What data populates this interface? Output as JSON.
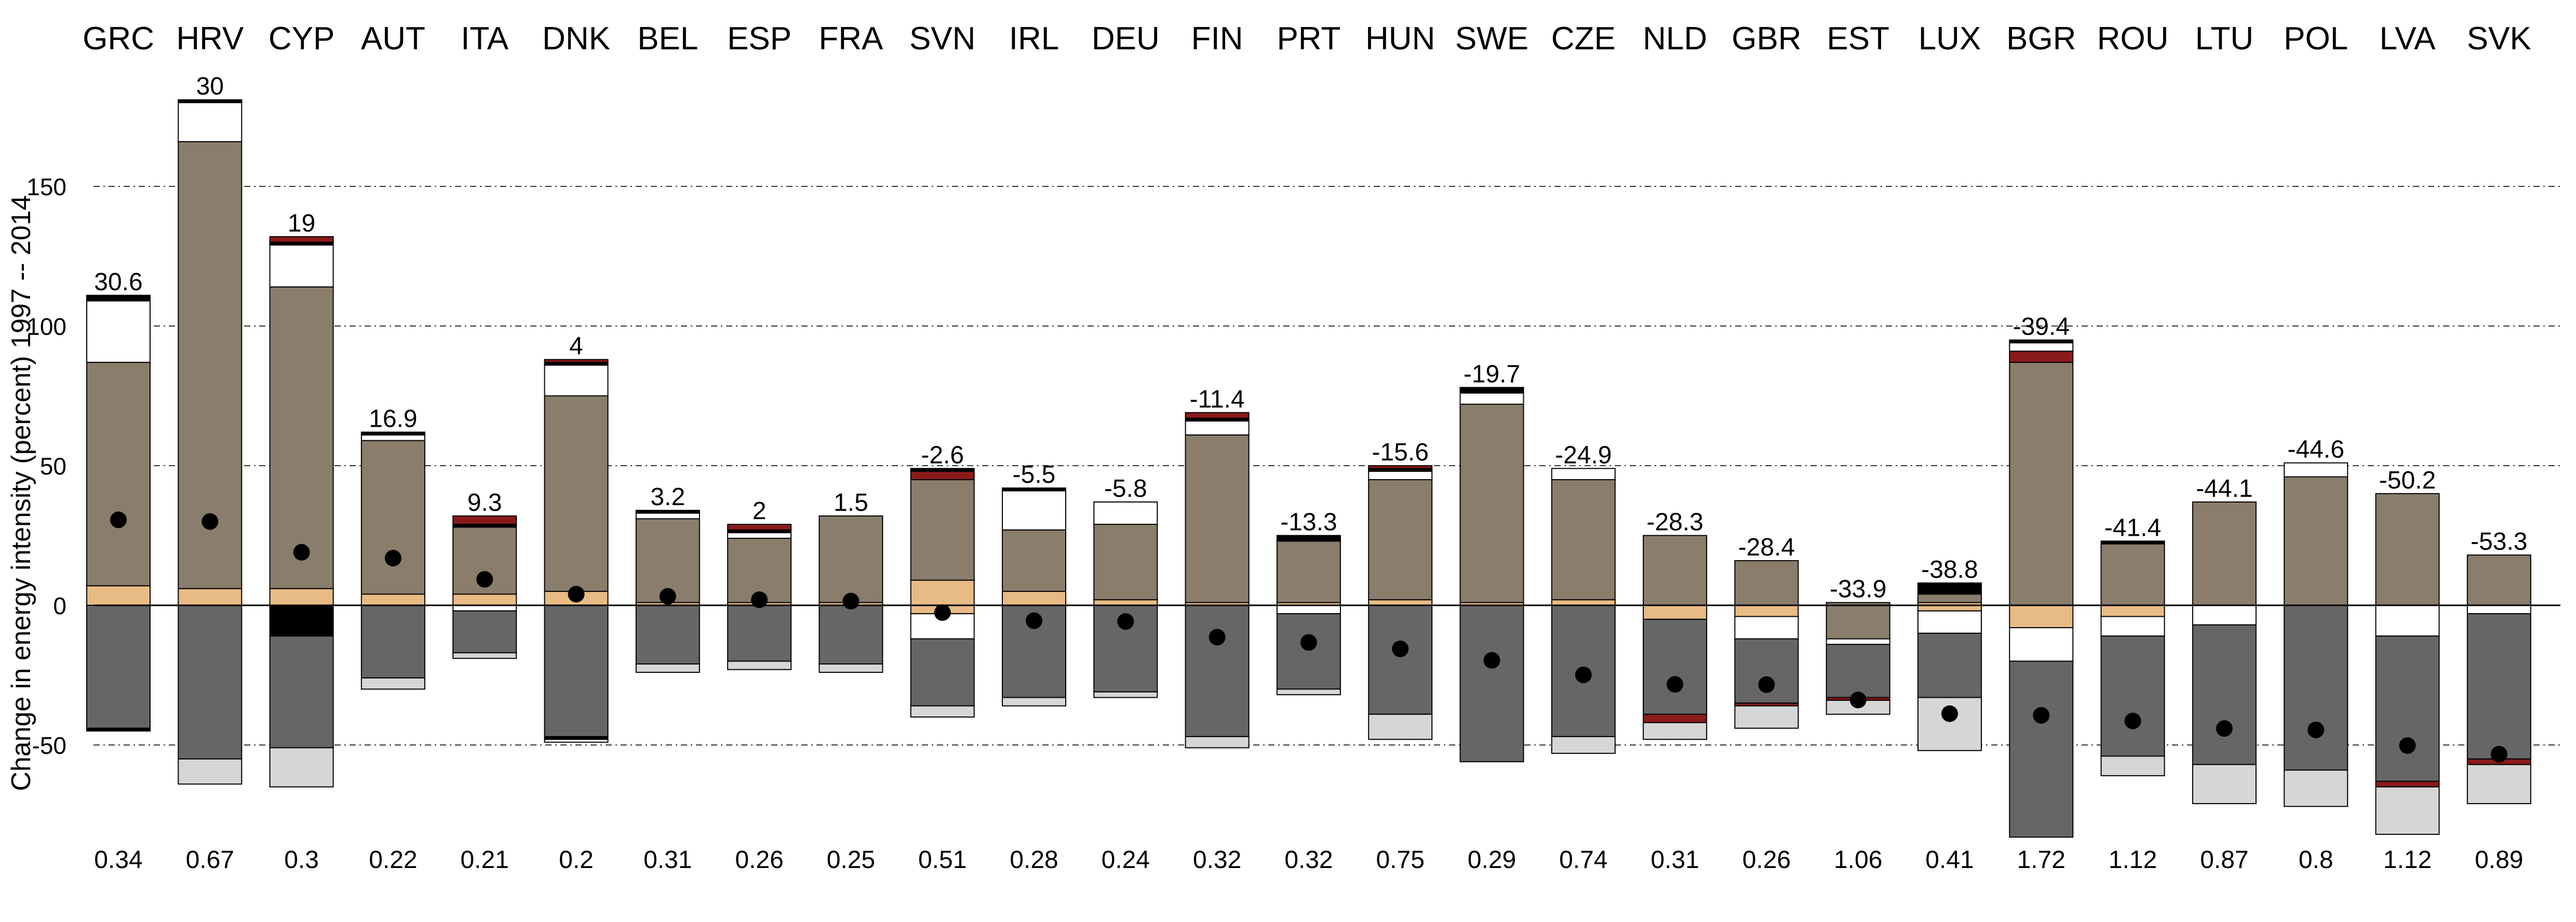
{
  "chart_data": {
    "type": "bar",
    "subtype": "stacked-decomposition",
    "title": "",
    "xlabel": "",
    "ylabel": "Change in energy intensity (percent) 1997 -- 2014",
    "ylim": [
      -83,
      181
    ],
    "yticks": [
      -50,
      0,
      50,
      100,
      150
    ],
    "grid": "horizontal dashed at -50, 50, 100, 150",
    "colors": {
      "brown": "#8a7d6b",
      "tan": "#e8bb85",
      "white": "#ffffff",
      "darkred": "#8b1a1a",
      "black": "#000000",
      "darkgray": "#666666",
      "lightgray": "#d6d6d6",
      "outline": "#000000",
      "dot": "#000000"
    },
    "categories": [
      "GRC",
      "HRV",
      "CYP",
      "AUT",
      "ITA",
      "DNK",
      "BEL",
      "ESP",
      "FRA",
      "SVN",
      "IRL",
      "DEU",
      "FIN",
      "PRT",
      "HUN",
      "SWE",
      "CZE",
      "NLD",
      "GBR",
      "EST",
      "LUX",
      "BGR",
      "ROU",
      "LTU",
      "POL",
      "LVA",
      "SVK"
    ],
    "total_change_labels": [
      "30.6",
      "30",
      "19",
      "16.9",
      "9.3",
      "4",
      "3.2",
      "2",
      "1.5",
      "-2.6",
      "-5.5",
      "-5.8",
      "-11.4",
      "-13.3",
      "-15.6",
      "-19.7",
      "-24.9",
      "-28.3",
      "-28.4",
      "-33.9",
      "-38.8",
      "-39.4",
      "-41.4",
      "-44.1",
      "-44.6",
      "-50.2",
      "-53.3"
    ],
    "bottom_values": [
      "0.34",
      "0.67",
      "0.3",
      "0.22",
      "0.21",
      "0.2",
      "0.31",
      "0.26",
      "0.25",
      "0.51",
      "0.28",
      "0.24",
      "0.32",
      "0.32",
      "0.75",
      "0.29",
      "0.74",
      "0.31",
      "0.26",
      "1.06",
      "0.41",
      "1.72",
      "1.12",
      "0.87",
      "0.8",
      "1.12",
      "0.89"
    ],
    "total_change": [
      30.6,
      30,
      19,
      16.9,
      9.3,
      4,
      3.2,
      2,
      1.5,
      -2.6,
      -5.5,
      -5.8,
      -11.4,
      -13.3,
      -15.6,
      -19.7,
      -24.9,
      -28.3,
      -28.4,
      -33.9,
      -38.8,
      -39.4,
      -41.4,
      -44.1,
      -44.6,
      -50.2,
      -53.3
    ],
    "positive_segments": [
      [
        {
          "c": "tan",
          "v": 7
        },
        {
          "c": "brown",
          "v": 80
        },
        {
          "c": "white",
          "v": 22
        },
        {
          "c": "black",
          "v": 2
        }
      ],
      [
        {
          "c": "tan",
          "v": 6
        },
        {
          "c": "brown",
          "v": 160
        },
        {
          "c": "white",
          "v": 14
        },
        {
          "c": "black",
          "v": 1
        }
      ],
      [
        {
          "c": "tan",
          "v": 6
        },
        {
          "c": "brown",
          "v": 108
        },
        {
          "c": "white",
          "v": 15
        },
        {
          "c": "black",
          "v": 1
        },
        {
          "c": "darkred",
          "v": 2
        }
      ],
      [
        {
          "c": "tan",
          "v": 4
        },
        {
          "c": "brown",
          "v": 55
        },
        {
          "c": "white",
          "v": 2
        },
        {
          "c": "black",
          "v": 1
        }
      ],
      [
        {
          "c": "tan",
          "v": 4
        },
        {
          "c": "brown",
          "v": 24
        },
        {
          "c": "black",
          "v": 1
        },
        {
          "c": "darkred",
          "v": 3
        }
      ],
      [
        {
          "c": "tan",
          "v": 5
        },
        {
          "c": "brown",
          "v": 70
        },
        {
          "c": "white",
          "v": 11
        },
        {
          "c": "black",
          "v": 1
        },
        {
          "c": "darkred",
          "v": 1
        }
      ],
      [
        {
          "c": "tan",
          "v": 1
        },
        {
          "c": "brown",
          "v": 30
        },
        {
          "c": "white",
          "v": 2
        },
        {
          "c": "black",
          "v": 1
        }
      ],
      [
        {
          "c": "tan",
          "v": 1
        },
        {
          "c": "brown",
          "v": 23
        },
        {
          "c": "white",
          "v": 2
        },
        {
          "c": "black",
          "v": 1
        },
        {
          "c": "darkred",
          "v": 2
        }
      ],
      [
        {
          "c": "tan",
          "v": 1
        },
        {
          "c": "brown",
          "v": 31
        }
      ],
      [
        {
          "c": "tan",
          "v": 9
        },
        {
          "c": "brown",
          "v": 36
        },
        {
          "c": "darkred",
          "v": 3
        },
        {
          "c": "black",
          "v": 1
        }
      ],
      [
        {
          "c": "tan",
          "v": 5
        },
        {
          "c": "brown",
          "v": 22
        },
        {
          "c": "white",
          "v": 14
        },
        {
          "c": "black",
          "v": 1
        }
      ],
      [
        {
          "c": "tan",
          "v": 2
        },
        {
          "c": "brown",
          "v": 27
        },
        {
          "c": "white",
          "v": 8
        }
      ],
      [
        {
          "c": "tan",
          "v": 1
        },
        {
          "c": "brown",
          "v": 60
        },
        {
          "c": "white",
          "v": 5
        },
        {
          "c": "black",
          "v": 1
        },
        {
          "c": "darkred",
          "v": 2
        }
      ],
      [
        {
          "c": "tan",
          "v": 1
        },
        {
          "c": "brown",
          "v": 22
        },
        {
          "c": "black",
          "v": 2
        }
      ],
      [
        {
          "c": "tan",
          "v": 2
        },
        {
          "c": "brown",
          "v": 43
        },
        {
          "c": "white",
          "v": 3
        },
        {
          "c": "black",
          "v": 1
        },
        {
          "c": "darkred",
          "v": 1
        }
      ],
      [
        {
          "c": "tan",
          "v": 1
        },
        {
          "c": "brown",
          "v": 71
        },
        {
          "c": "white",
          "v": 4
        },
        {
          "c": "black",
          "v": 2
        }
      ],
      [
        {
          "c": "tan",
          "v": 2
        },
        {
          "c": "brown",
          "v": 43
        },
        {
          "c": "white",
          "v": 4
        }
      ],
      [
        {
          "c": "brown",
          "v": 25
        }
      ],
      [
        {
          "c": "brown",
          "v": 16
        }
      ],
      [
        {
          "c": "brown",
          "v": 1
        }
      ],
      [
        {
          "c": "tan",
          "v": 1
        },
        {
          "c": "brown",
          "v": 3
        },
        {
          "c": "black",
          "v": 4
        }
      ],
      [
        {
          "c": "brown",
          "v": 87
        },
        {
          "c": "darkred",
          "v": 4
        },
        {
          "c": "white",
          "v": 3
        },
        {
          "c": "black",
          "v": 1
        }
      ],
      [
        {
          "c": "brown",
          "v": 22
        },
        {
          "c": "black",
          "v": 1
        }
      ],
      [
        {
          "c": "brown",
          "v": 37
        }
      ],
      [
        {
          "c": "brown",
          "v": 46
        },
        {
          "c": "white",
          "v": 5
        }
      ],
      [
        {
          "c": "brown",
          "v": 40
        }
      ],
      [
        {
          "c": "brown",
          "v": 18
        }
      ]
    ],
    "negative_segments": [
      [
        {
          "c": "darkgray",
          "v": 44
        },
        {
          "c": "black",
          "v": 1
        }
      ],
      [
        {
          "c": "darkgray",
          "v": 55
        },
        {
          "c": "lightgray",
          "v": 9
        }
      ],
      [
        {
          "c": "black",
          "v": 11
        },
        {
          "c": "darkgray",
          "v": 40
        },
        {
          "c": "lightgray",
          "v": 14
        }
      ],
      [
        {
          "c": "darkgray",
          "v": 26
        },
        {
          "c": "lightgray",
          "v": 4
        }
      ],
      [
        {
          "c": "white",
          "v": 2
        },
        {
          "c": "darkgray",
          "v": 15
        },
        {
          "c": "lightgray",
          "v": 2
        }
      ],
      [
        {
          "c": "darkgray",
          "v": 47
        },
        {
          "c": "black",
          "v": 1
        },
        {
          "c": "white",
          "v": 1
        }
      ],
      [
        {
          "c": "darkgray",
          "v": 21
        },
        {
          "c": "lightgray",
          "v": 3
        }
      ],
      [
        {
          "c": "darkgray",
          "v": 20
        },
        {
          "c": "lightgray",
          "v": 3
        }
      ],
      [
        {
          "c": "darkgray",
          "v": 21
        },
        {
          "c": "lightgray",
          "v": 3
        }
      ],
      [
        {
          "c": "tan",
          "v": 3
        },
        {
          "c": "white",
          "v": 9
        },
        {
          "c": "darkgray",
          "v": 24
        },
        {
          "c": "lightgray",
          "v": 4
        }
      ],
      [
        {
          "c": "darkgray",
          "v": 33
        },
        {
          "c": "lightgray",
          "v": 3
        }
      ],
      [
        {
          "c": "darkgray",
          "v": 31
        },
        {
          "c": "lightgray",
          "v": 2
        }
      ],
      [
        {
          "c": "darkgray",
          "v": 47
        },
        {
          "c": "lightgray",
          "v": 4
        }
      ],
      [
        {
          "c": "white",
          "v": 3
        },
        {
          "c": "darkgray",
          "v": 27
        },
        {
          "c": "lightgray",
          "v": 2
        }
      ],
      [
        {
          "c": "darkgray",
          "v": 39
        },
        {
          "c": "lightgray",
          "v": 9
        }
      ],
      [
        {
          "c": "darkgray",
          "v": 56
        }
      ],
      [
        {
          "c": "darkgray",
          "v": 47
        },
        {
          "c": "lightgray",
          "v": 6
        }
      ],
      [
        {
          "c": "tan",
          "v": 5
        },
        {
          "c": "darkgray",
          "v": 34
        },
        {
          "c": "darkred",
          "v": 3
        },
        {
          "c": "lightgray",
          "v": 6
        }
      ],
      [
        {
          "c": "tan",
          "v": 4
        },
        {
          "c": "white",
          "v": 8
        },
        {
          "c": "darkgray",
          "v": 23
        },
        {
          "c": "darkred",
          "v": 1
        },
        {
          "c": "lightgray",
          "v": 8
        }
      ],
      [
        {
          "c": "brown",
          "v": 12
        },
        {
          "c": "white",
          "v": 2
        },
        {
          "c": "darkgray",
          "v": 19
        },
        {
          "c": "darkred",
          "v": 1
        },
        {
          "c": "lightgray",
          "v": 5
        }
      ],
      [
        {
          "c": "tan",
          "v": 2
        },
        {
          "c": "white",
          "v": 8
        },
        {
          "c": "darkgray",
          "v": 23
        },
        {
          "c": "lightgray",
          "v": 19
        }
      ],
      [
        {
          "c": "tan",
          "v": 8
        },
        {
          "c": "white",
          "v": 12
        },
        {
          "c": "darkgray",
          "v": 63
        }
      ],
      [
        {
          "c": "tan",
          "v": 4
        },
        {
          "c": "white",
          "v": 7
        },
        {
          "c": "darkgray",
          "v": 43
        },
        {
          "c": "lightgray",
          "v": 7
        }
      ],
      [
        {
          "c": "white",
          "v": 7
        },
        {
          "c": "darkgray",
          "v": 50
        },
        {
          "c": "lightgray",
          "v": 14
        }
      ],
      [
        {
          "c": "darkgray",
          "v": 59
        },
        {
          "c": "lightgray",
          "v": 13
        }
      ],
      [
        {
          "c": "white",
          "v": 11
        },
        {
          "c": "darkgray",
          "v": 52
        },
        {
          "c": "darkred",
          "v": 2
        },
        {
          "c": "lightgray",
          "v": 17
        }
      ],
      [
        {
          "c": "white",
          "v": 3
        },
        {
          "c": "darkgray",
          "v": 52
        },
        {
          "c": "darkred",
          "v": 2
        },
        {
          "c": "lightgray",
          "v": 14
        }
      ]
    ]
  }
}
